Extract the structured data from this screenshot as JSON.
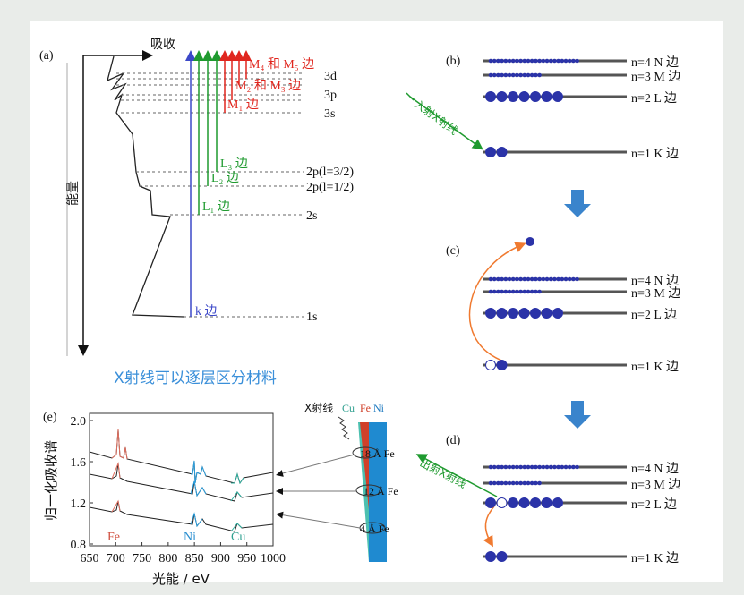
{
  "panel_a": {
    "label": "(a)",
    "absorb": "吸收",
    "energy": "能量",
    "levels": [
      "3d",
      "3p",
      "3s",
      "2p(l=3/2)",
      "2p(l=1/2)",
      "2s",
      "1s"
    ],
    "edges": [
      "M₄ 和 M₅ 边",
      "M₂ 和 M₃ 边",
      "M₁ 边",
      "L₃ 边",
      "L₂ 边",
      "L₁ 边",
      "k 边"
    ]
  },
  "panel_b": {
    "label": "(b)",
    "ray": "入射X射线",
    "shells": [
      "n=4 N 边",
      "n=3 M 边",
      "n=2 L 边",
      "n=1 K 边"
    ]
  },
  "panel_c": {
    "label": "(c)",
    "shells": [
      "n=4 N 边",
      "n=3 M 边",
      "n=2 L 边",
      "n=1 K 边"
    ]
  },
  "panel_d": {
    "label": "(d)",
    "ray": "出射X射线",
    "shells": [
      "n=4 N 边",
      "n=3 M 边",
      "n=2 L 边",
      "n=1 K 边"
    ]
  },
  "middle_title": "X射线可以逐层区分材料",
  "panel_e": {
    "label": "(e)",
    "y_label": "归一化吸收谱",
    "x_label": "光能 / eV",
    "yticks": [
      "2.0",
      "1.6",
      "1.2",
      "0.8"
    ],
    "xticks": [
      "650",
      "700",
      "750",
      "800",
      "850",
      "900",
      "950",
      "1000"
    ],
    "elements": [
      "Fe",
      "Ni",
      "Cu"
    ],
    "xray": "X射线",
    "layers": [
      "Cu",
      "Fe",
      "Ni"
    ],
    "thickness": [
      "18 Å Fe",
      "12 Å Fe",
      "4 Å Fe"
    ]
  }
}
